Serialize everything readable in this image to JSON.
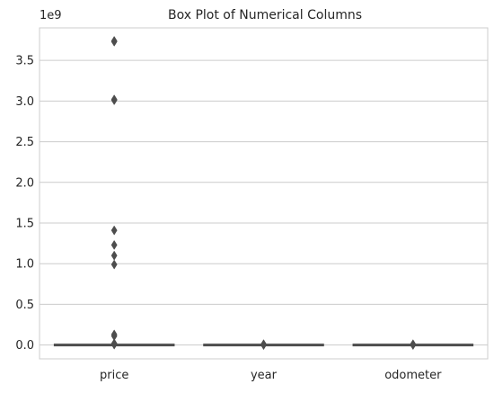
{
  "chart_data": {
    "type": "box",
    "title": "Box Plot of Numerical Columns",
    "categories": [
      "price",
      "year",
      "odometer"
    ],
    "y_multiplier_label": "1e9",
    "ylim": [
      -0.17,
      3.9
    ],
    "yticks": [
      0.0,
      0.5,
      1.0,
      1.5,
      2.0,
      2.5,
      3.0,
      3.5
    ],
    "ytick_labels": [
      "0.0",
      "0.5",
      "1.0",
      "1.5",
      "2.0",
      "2.5",
      "3.0",
      "3.5"
    ],
    "grid": "y",
    "box_color": "#3f7cb8",
    "outlier_color": "#4d4d4d",
    "series": [
      {
        "category": "price",
        "q1": 0.0,
        "median": 0.0,
        "q3": 0.0,
        "whisker_low": 0.0,
        "whisker_high": 0.0,
        "outliers": [
          3.74,
          3.73,
          3.02,
          3.01,
          1.41,
          1.23,
          1.1,
          0.99,
          0.13,
          0.11,
          0.02,
          0.01,
          0.005
        ]
      },
      {
        "category": "year",
        "q1": 0.0,
        "median": 0.0,
        "q3": 0.0,
        "whisker_low": 0.0,
        "whisker_high": 0.0,
        "outliers": [
          0.01,
          0.005,
          0.0
        ]
      },
      {
        "category": "odometer",
        "q1": 0.0,
        "median": 0.0,
        "q3": 0.0,
        "whisker_low": 0.0,
        "whisker_high": 0.0,
        "outliers": [
          0.01,
          0.005,
          0.0
        ]
      }
    ]
  }
}
